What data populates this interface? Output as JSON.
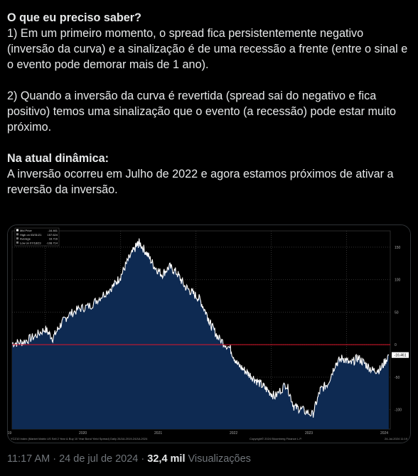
{
  "post": {
    "heading": "O que eu preciso saber?",
    "paragraph1": "1) Em um primeiro momento, o spread fica persistentemente negativo (inversão da curva) e a sinalização é de uma recessão a frente (entre o sinal e o evento pode demorar mais de 1 ano).",
    "paragraph2": "2)  Quando a inversão da curva é revertida (spread sai do negativo e fica positivo) temos uma sinalização que o evento (a recessão) pode estar muito próximo.",
    "subheading": "Na atual dinâmica:",
    "paragraph3": "A inversão ocorreu em Julho de 2022 e agora estamos próximos de ativar a reversão da inversão."
  },
  "meta": {
    "time": "11:17 AM",
    "separator1": "·",
    "date": "24 de jul de 2024",
    "separator2": "·",
    "views_count": "32,4 mil",
    "views_label": "Visualizações"
  },
  "chart_data": {
    "type": "area",
    "legend": [
      {
        "label": "Mid Price",
        "value": "-16.461"
      },
      {
        "label": "High on 03/31/21",
        "value": "157.624"
      },
      {
        "label": "Average",
        "value": "16.716"
      },
      {
        "label": "Low on 07/18/23",
        "value": "-108.714"
      }
    ],
    "legend_position": "top-left",
    "current_value_label": "-16.461",
    "yticks": [
      150,
      100,
      50,
      0,
      -50,
      -100
    ],
    "ylim": [
      -130,
      175
    ],
    "xticks": [
      "2019",
      "2020",
      "2021",
      "2022",
      "2023",
      "2024"
    ],
    "reference_line": 0,
    "footer_left": "YCZ10 Index (Market Matrix US Sell 2 Year & Buy 10 Year Bond Yield Spread)  Daily 26JUL2019-24JUL2024",
    "footer_center": "Copyright© 2024 Bloomberg Finance L.P.",
    "footer_right": "24-Jul-2024 11:19",
    "x": [
      2019.56,
      2019.7,
      2019.85,
      2020.0,
      2020.1,
      2020.2,
      2020.3,
      2020.45,
      2020.6,
      2020.75,
      2020.9,
      2021.0,
      2021.1,
      2021.2,
      2021.25,
      2021.35,
      2021.45,
      2021.55,
      2021.65,
      2021.75,
      2021.85,
      2021.95,
      2022.05,
      2022.15,
      2022.2,
      2022.3,
      2022.45,
      2022.55,
      2022.65,
      2022.75,
      2022.85,
      2022.95,
      2023.05,
      2023.2,
      2023.3,
      2023.4,
      2023.55,
      2023.65,
      2023.75,
      2023.85,
      2023.95,
      2024.05,
      2024.15,
      2024.25,
      2024.35,
      2024.45,
      2024.56
    ],
    "y": [
      2,
      4,
      12,
      24,
      10,
      30,
      45,
      55,
      60,
      75,
      90,
      105,
      130,
      150,
      157,
      140,
      120,
      108,
      120,
      110,
      90,
      80,
      70,
      45,
      30,
      10,
      -5,
      -30,
      -40,
      -50,
      -60,
      -70,
      -80,
      -60,
      -95,
      -100,
      -108,
      -70,
      -60,
      -30,
      -20,
      -30,
      -20,
      -30,
      -40,
      -38,
      -16
    ]
  }
}
